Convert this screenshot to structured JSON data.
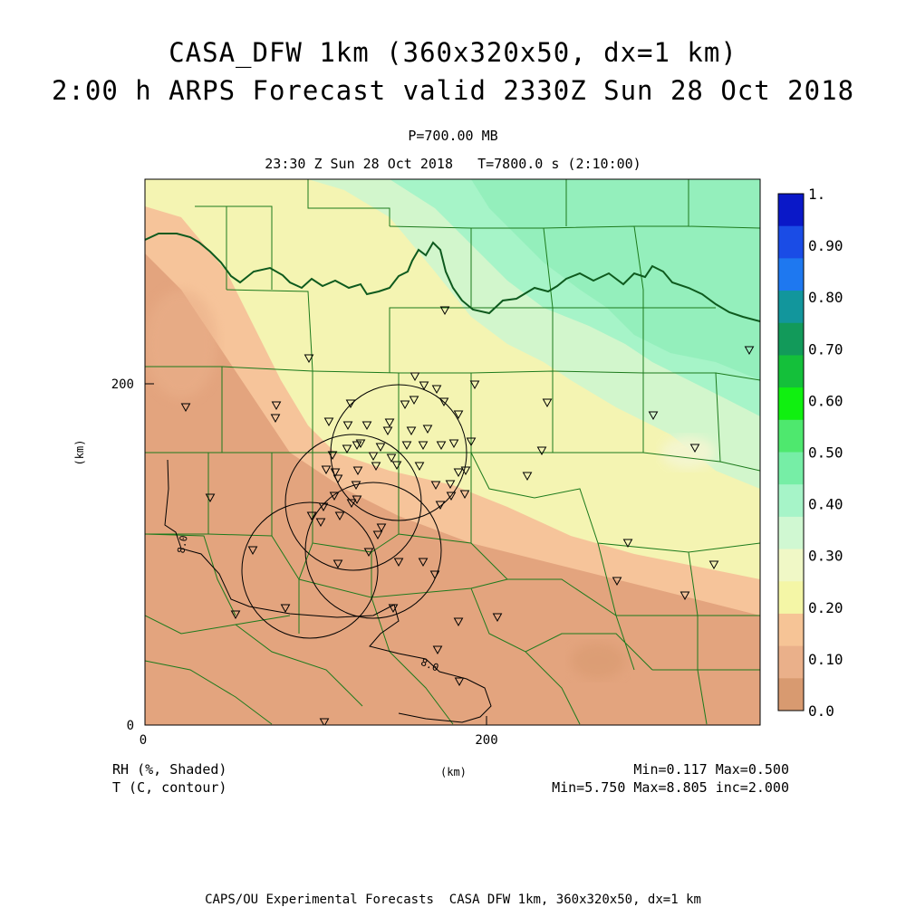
{
  "title": {
    "line1": "CASA_DFW 1km (360x320x50, dx=1 km)",
    "line2": "2:00 h ARPS Forecast valid 2330Z Sun 28 Oct 2018"
  },
  "subtitle": {
    "pressure": "P=700.00 MB",
    "time": "23:30 Z Sun 28 Oct 2018   T=7800.0 s (2:10:00)"
  },
  "axes": {
    "x_ticks": [
      "0",
      "200"
    ],
    "y_ticks": [
      "0",
      "200"
    ],
    "xlabel": "(km)",
    "ylabel": "(km)"
  },
  "colorbar": {
    "labels": [
      "1.",
      "0.90",
      "0.80",
      "0.70",
      "0.60",
      "0.50",
      "0.40",
      "0.30",
      "0.20",
      "0.10",
      "0.0"
    ],
    "colors": [
      "#0a18c8",
      "#1a4ce6",
      "#1e78f0",
      "#12969c",
      "#129a5a",
      "#14c03a",
      "#10f010",
      "#4ee86e",
      "#76eea6",
      "#a6f4c8",
      "#d0f8d2",
      "#f0f8c6",
      "#f4f6a6",
      "#f6c496",
      "#eab08a",
      "#d89a70"
    ]
  },
  "contour_labels": [
    "8.0",
    "8.0"
  ],
  "footer": {
    "rh_label": "RH (%, Shaded)",
    "t_label": "T (C, contour)",
    "rh_minmax": "Min=0.117 Max=0.500",
    "t_minmax": "Min=5.750 Max=8.805 inc=2.000",
    "x_unit": "(km)",
    "credit": "CAPS/OU Experimental Forecasts  CASA DFW 1km, 360x320x50, dx=1 km"
  },
  "colors": {
    "rh_brown": "#e3a47e",
    "rh_orange": "#f6c49a",
    "rh_yellow": "#f4f4b2",
    "rh_light_green": "#d2f6cc",
    "rh_green": "#8eedb8",
    "county_lines": "#1c7a1c",
    "thick_border": "#0e5a1e"
  }
}
